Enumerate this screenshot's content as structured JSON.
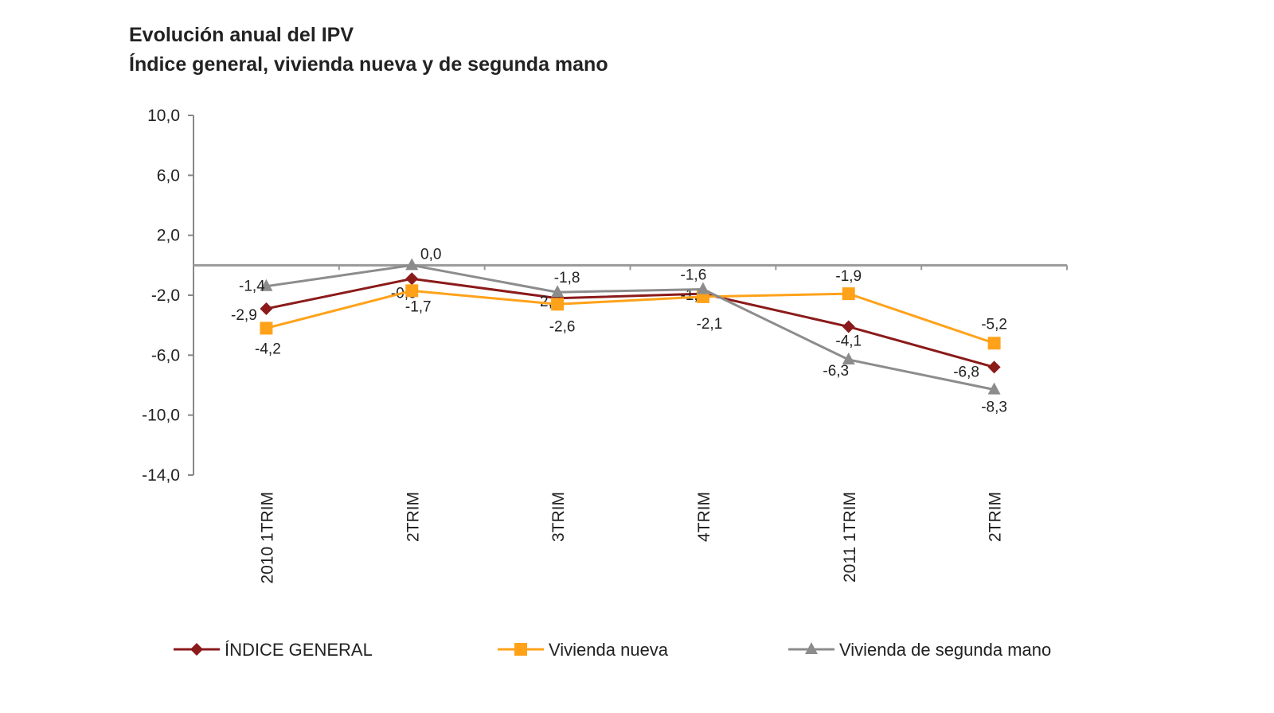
{
  "chart_data": {
    "type": "line",
    "title": "Evolución anual del IPV",
    "subtitle": "Índice general, vivienda nueva y de segunda mano",
    "categories": [
      "2010 1TRIM",
      "2TRIM",
      "3TRIM",
      "4TRIM",
      "2011 1TRIM",
      "2TRIM"
    ],
    "yticks": [
      "10,0",
      "6,0",
      "2,0",
      "-2,0",
      "-6,0",
      "-10,0",
      "-14,0"
    ],
    "ylim": [
      -14,
      10
    ],
    "grid": false,
    "legend": "bottom",
    "series": [
      {
        "name": "ÍNDICE GENERAL",
        "color": "#8B1A1A",
        "marker": "diamond",
        "values": [
          -2.9,
          -0.9,
          -2.2,
          -1.9,
          -4.1,
          -6.8
        ],
        "labels": [
          "-2,9",
          "-0,9",
          "-2,2",
          "-1,9",
          "-4,1",
          "-6,8"
        ]
      },
      {
        "name": "Vivienda nueva",
        "color": "#FFA21A",
        "marker": "square",
        "values": [
          -4.2,
          -1.7,
          -2.6,
          -2.1,
          -1.9,
          -5.2
        ],
        "labels": [
          "-4,2",
          "-1,7",
          "-2,6",
          "-2,1",
          "-1,9",
          "-5,2"
        ]
      },
      {
        "name": "Vivienda de segunda mano",
        "color": "#8C8C8C",
        "marker": "triangle",
        "values": [
          -1.4,
          0.0,
          -1.8,
          -1.6,
          -6.3,
          -8.3
        ],
        "labels": [
          "-1,4",
          "0,0",
          "-1,8",
          "-1,6",
          "-6,3",
          "-8,3"
        ]
      }
    ]
  }
}
